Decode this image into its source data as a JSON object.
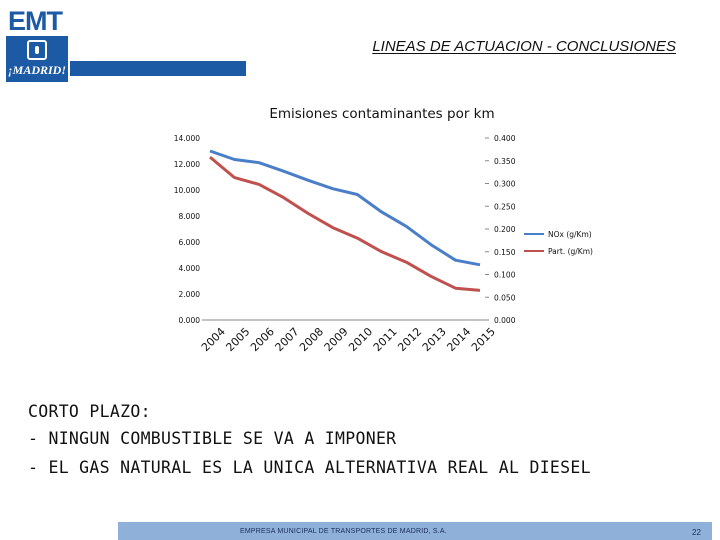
{
  "logo": {
    "brand": "EMT",
    "city": "¡MADRID!"
  },
  "header": {
    "title": "LINEAS DE ACTUACION - CONCLUSIONES"
  },
  "body": {
    "line1": "CORTO PLAZO:",
    "line2": "- NINGUN COMBUSTIBLE SE VA A IMPONER",
    "line3": "- EL GAS NATURAL ES LA UNICA ALTERNATIVA REAL AL DIESEL"
  },
  "footer": {
    "text": "EMPRESA MUNICIPAL DE TRANSPORTES DE MADRID, S.A.",
    "page": "22"
  },
  "colors": {
    "brand_blue": "#1d5aa6",
    "nox_line": "#4a7ec8",
    "part_line": "#c0504d",
    "footer_bar": "#8fb0d9"
  },
  "chart_data": {
    "type": "line",
    "title": "Emisiones contaminantes por km",
    "categories": [
      "2004",
      "2005",
      "2006",
      "2007",
      "2008",
      "2009",
      "2010",
      "2011",
      "2012",
      "2013",
      "2014",
      "2015"
    ],
    "series": [
      {
        "name": "NOx (g/Km)",
        "axis": "left",
        "values": [
          13.0,
          12.35,
          12.1,
          11.45,
          10.75,
          10.1,
          9.65,
          8.3,
          7.2,
          5.8,
          4.6,
          4.25
        ]
      },
      {
        "name": "Part. (g/Km)",
        "axis": "right",
        "values": [
          0.358,
          0.313,
          0.298,
          0.269,
          0.234,
          0.203,
          0.18,
          0.15,
          0.127,
          0.096,
          0.07,
          0.065
        ]
      }
    ],
    "left_axis": {
      "ylim": [
        0,
        14
      ],
      "ticks": [
        "0.000",
        "2.000",
        "4.000",
        "6.000",
        "8.000",
        "10.000",
        "12.000",
        "14.000"
      ]
    },
    "right_axis": {
      "ylim": [
        0,
        0.4
      ],
      "ticks": [
        "0.000",
        "0.050",
        "0.100",
        "0.150",
        "0.200",
        "0.250",
        "0.300",
        "0.350",
        "0.400"
      ]
    },
    "legend_position": "right",
    "grid": false
  }
}
